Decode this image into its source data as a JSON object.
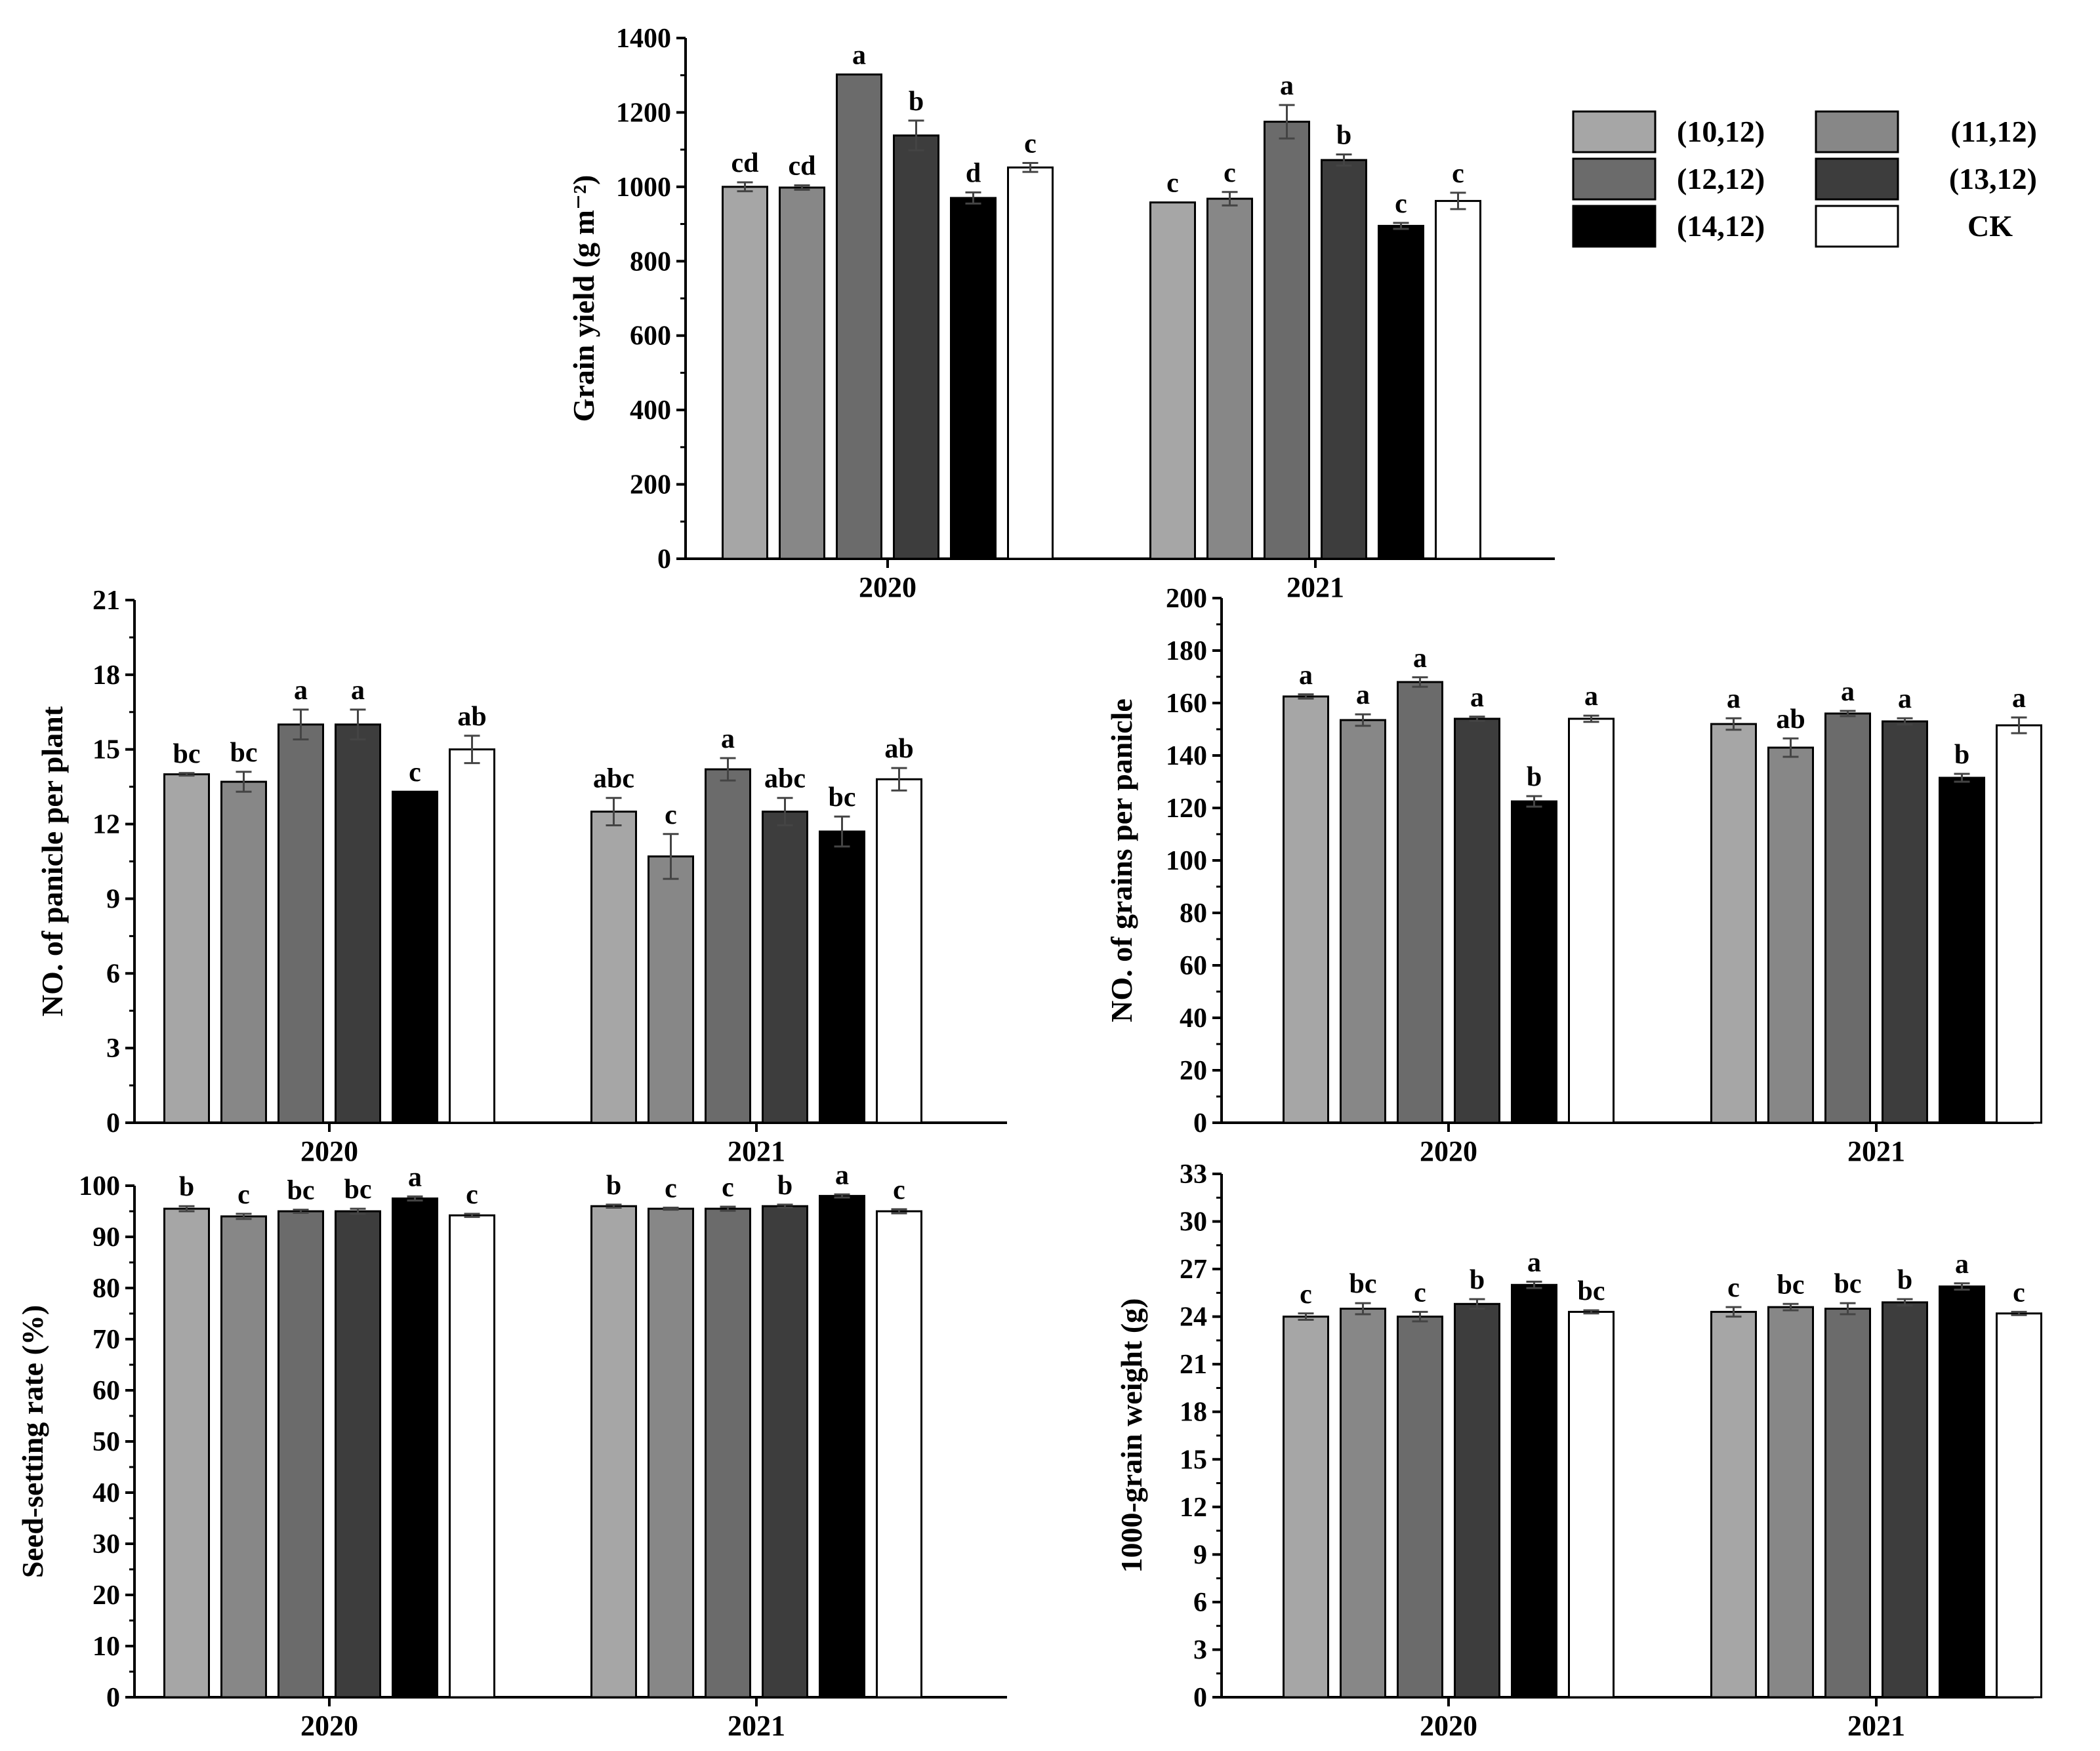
{
  "series_names": [
    "(10,12)",
    "(11,12)",
    "(12,12)",
    "(13,12)",
    "(14,12)",
    "CK"
  ],
  "series_colors": [
    "#a6a6a6",
    "#878787",
    "#6b6b6b",
    "#3d3d3d",
    "#000000",
    "#ffffff"
  ],
  "legend": {
    "items": [
      {
        "label": "(10,12)",
        "color": "#a6a6a6"
      },
      {
        "label": "(11,12)",
        "color": "#878787"
      },
      {
        "label": "(12,12)",
        "color": "#6b6b6b"
      },
      {
        "label": "(13,12)",
        "color": "#3d3d3d"
      },
      {
        "label": "(14,12)",
        "color": "#000000"
      },
      {
        "label": "CK",
        "color": "#ffffff"
      }
    ]
  },
  "chart_data": [
    {
      "id": "grain-yield",
      "type": "bar",
      "ylabel": "Grain yield (g m⁻²)",
      "ylim": [
        0,
        1400
      ],
      "yticks": [
        0,
        200,
        400,
        600,
        800,
        1000,
        1200,
        1400
      ],
      "ytick_labels": [
        "0",
        "200",
        "400",
        "600",
        "800",
        "1000",
        "1200",
        "1400"
      ],
      "categories": [
        "2020",
        "2021"
      ],
      "series": [
        {
          "name": "(10,12)",
          "values": [
            1000,
            958
          ],
          "errors": [
            12,
            0
          ],
          "letters": [
            "cd",
            "c"
          ]
        },
        {
          "name": "(11,12)",
          "values": [
            998,
            968
          ],
          "errors": [
            6,
            18
          ],
          "letters": [
            "cd",
            "c"
          ]
        },
        {
          "name": "(12,12)",
          "values": [
            1302,
            1175
          ],
          "errors": [
            0,
            45
          ],
          "letters": [
            "a",
            "a"
          ]
        },
        {
          "name": "(13,12)",
          "values": [
            1138,
            1072
          ],
          "errors": [
            40,
            15
          ],
          "letters": [
            "b",
            "b"
          ]
        },
        {
          "name": "(14,12)",
          "values": [
            970,
            895
          ],
          "errors": [
            15,
            8
          ],
          "letters": [
            "d",
            "c"
          ]
        },
        {
          "name": "CK",
          "values": [
            1052,
            962
          ],
          "errors": [
            12,
            22
          ],
          "letters": [
            "c",
            "c"
          ]
        }
      ]
    },
    {
      "id": "panicle-per-plant",
      "type": "bar",
      "ylabel": "NO. of panicle per plant",
      "ylim": [
        0,
        21
      ],
      "yticks": [
        0,
        3,
        6,
        9,
        12,
        15,
        18,
        21
      ],
      "ytick_labels": [
        "0",
        "3",
        "6",
        "9",
        "12",
        "15",
        "18",
        "21"
      ],
      "categories": [
        "2020",
        "2021"
      ],
      "series": [
        {
          "name": "(10,12)",
          "values": [
            14.0,
            12.5
          ],
          "errors": [
            0.05,
            0.55
          ],
          "letters": [
            "bc",
            "abc"
          ]
        },
        {
          "name": "(11,12)",
          "values": [
            13.7,
            10.7
          ],
          "errors": [
            0.4,
            0.9
          ],
          "letters": [
            "bc",
            "c"
          ]
        },
        {
          "name": "(12,12)",
          "values": [
            16.0,
            14.2
          ],
          "errors": [
            0.6,
            0.45
          ],
          "letters": [
            "a",
            "a"
          ]
        },
        {
          "name": "(13,12)",
          "values": [
            16.0,
            12.5
          ],
          "errors": [
            0.6,
            0.55
          ],
          "letters": [
            "a",
            "abc"
          ]
        },
        {
          "name": "(14,12)",
          "values": [
            13.3,
            11.7
          ],
          "errors": [
            0.0,
            0.6
          ],
          "letters": [
            "c",
            "bc"
          ]
        },
        {
          "name": "CK",
          "values": [
            15.0,
            13.8
          ],
          "errors": [
            0.55,
            0.45
          ],
          "letters": [
            "ab",
            "ab"
          ]
        }
      ]
    },
    {
      "id": "grains-per-panicle",
      "type": "bar",
      "ylabel": "NO. of grains per panicle",
      "ylim": [
        0,
        200
      ],
      "yticks": [
        0,
        20,
        40,
        60,
        80,
        100,
        120,
        140,
        160,
        180,
        200
      ],
      "ytick_labels": [
        "0",
        "20",
        "40",
        "60",
        "80",
        "100",
        "120",
        "140",
        "160",
        "180",
        "200"
      ],
      "categories": [
        "2020",
        "2021"
      ],
      "series": [
        {
          "name": "(10,12)",
          "values": [
            162.5,
            152
          ],
          "errors": [
            0.8,
            2.2
          ],
          "letters": [
            "a",
            "a"
          ]
        },
        {
          "name": "(11,12)",
          "values": [
            153.5,
            143
          ],
          "errors": [
            2.2,
            3.5
          ],
          "letters": [
            "a",
            "ab"
          ]
        },
        {
          "name": "(12,12)",
          "values": [
            168,
            156
          ],
          "errors": [
            1.8,
            1.0
          ],
          "letters": [
            "a",
            "a"
          ]
        },
        {
          "name": "(13,12)",
          "values": [
            154,
            153
          ],
          "errors": [
            0.8,
            1.2
          ],
          "letters": [
            "a",
            "a"
          ]
        },
        {
          "name": "(14,12)",
          "values": [
            122.5,
            131.5
          ],
          "errors": [
            2.0,
            1.5
          ],
          "letters": [
            "b",
            "b"
          ]
        },
        {
          "name": "CK",
          "values": [
            154,
            151.5
          ],
          "errors": [
            1.2,
            3.0
          ],
          "letters": [
            "a",
            "a"
          ]
        }
      ]
    },
    {
      "id": "seed-setting-rate",
      "type": "bar",
      "ylabel": "Seed-setting rate (%)",
      "ylim": [
        0,
        100
      ],
      "yticks": [
        0,
        10,
        20,
        30,
        40,
        50,
        60,
        70,
        80,
        90,
        100
      ],
      "ytick_labels": [
        "0",
        "10",
        "20",
        "30",
        "40",
        "50",
        "60",
        "70",
        "80",
        "90",
        "100"
      ],
      "categories": [
        "2020",
        "2021"
      ],
      "series": [
        {
          "name": "(10,12)",
          "values": [
            95.5,
            96.0
          ],
          "errors": [
            0.5,
            0.3
          ],
          "letters": [
            "b",
            "b"
          ]
        },
        {
          "name": "(11,12)",
          "values": [
            94.0,
            95.5
          ],
          "errors": [
            0.5,
            0.2
          ],
          "letters": [
            "c",
            "c"
          ]
        },
        {
          "name": "(12,12)",
          "values": [
            95.0,
            95.5
          ],
          "errors": [
            0.3,
            0.4
          ],
          "letters": [
            "bc",
            "c"
          ]
        },
        {
          "name": "(13,12)",
          "values": [
            95.0,
            96.0
          ],
          "errors": [
            0.5,
            0.3
          ],
          "letters": [
            "bc",
            "b"
          ]
        },
        {
          "name": "(14,12)",
          "values": [
            97.5,
            98.0
          ],
          "errors": [
            0.4,
            0.3
          ],
          "letters": [
            "a",
            "a"
          ]
        },
        {
          "name": "CK",
          "values": [
            94.2,
            95.0
          ],
          "errors": [
            0.3,
            0.4
          ],
          "letters": [
            "c",
            "c"
          ]
        }
      ]
    },
    {
      "id": "thousand-grain-weight",
      "type": "bar",
      "ylabel": "1000-grain weight (g)",
      "ylim": [
        0,
        33
      ],
      "yticks": [
        0,
        3,
        6,
        9,
        12,
        15,
        18,
        21,
        24,
        27,
        30,
        33
      ],
      "ytick_labels": [
        "0",
        "3",
        "6",
        "9",
        "12",
        "15",
        "18",
        "21",
        "24",
        "27",
        "30",
        "33"
      ],
      "categories": [
        "2020",
        "2021"
      ],
      "series": [
        {
          "name": "(10,12)",
          "values": [
            24.0,
            24.3
          ],
          "errors": [
            0.2,
            0.3
          ],
          "letters": [
            "c",
            "c"
          ]
        },
        {
          "name": "(11,12)",
          "values": [
            24.5,
            24.6
          ],
          "errors": [
            0.35,
            0.2
          ],
          "letters": [
            "bc",
            "bc"
          ]
        },
        {
          "name": "(12,12)",
          "values": [
            24.0,
            24.5
          ],
          "errors": [
            0.3,
            0.35
          ],
          "letters": [
            "c",
            "bc"
          ]
        },
        {
          "name": "(13,12)",
          "values": [
            24.8,
            24.9
          ],
          "errors": [
            0.3,
            0.2
          ],
          "letters": [
            "b",
            "b"
          ]
        },
        {
          "name": "(14,12)",
          "values": [
            26.0,
            25.9
          ],
          "errors": [
            0.2,
            0.2
          ],
          "letters": [
            "a",
            "a"
          ]
        },
        {
          "name": "CK",
          "values": [
            24.3,
            24.2
          ],
          "errors": [
            0.1,
            0.1
          ],
          "letters": [
            "bc",
            "c"
          ]
        }
      ]
    }
  ]
}
